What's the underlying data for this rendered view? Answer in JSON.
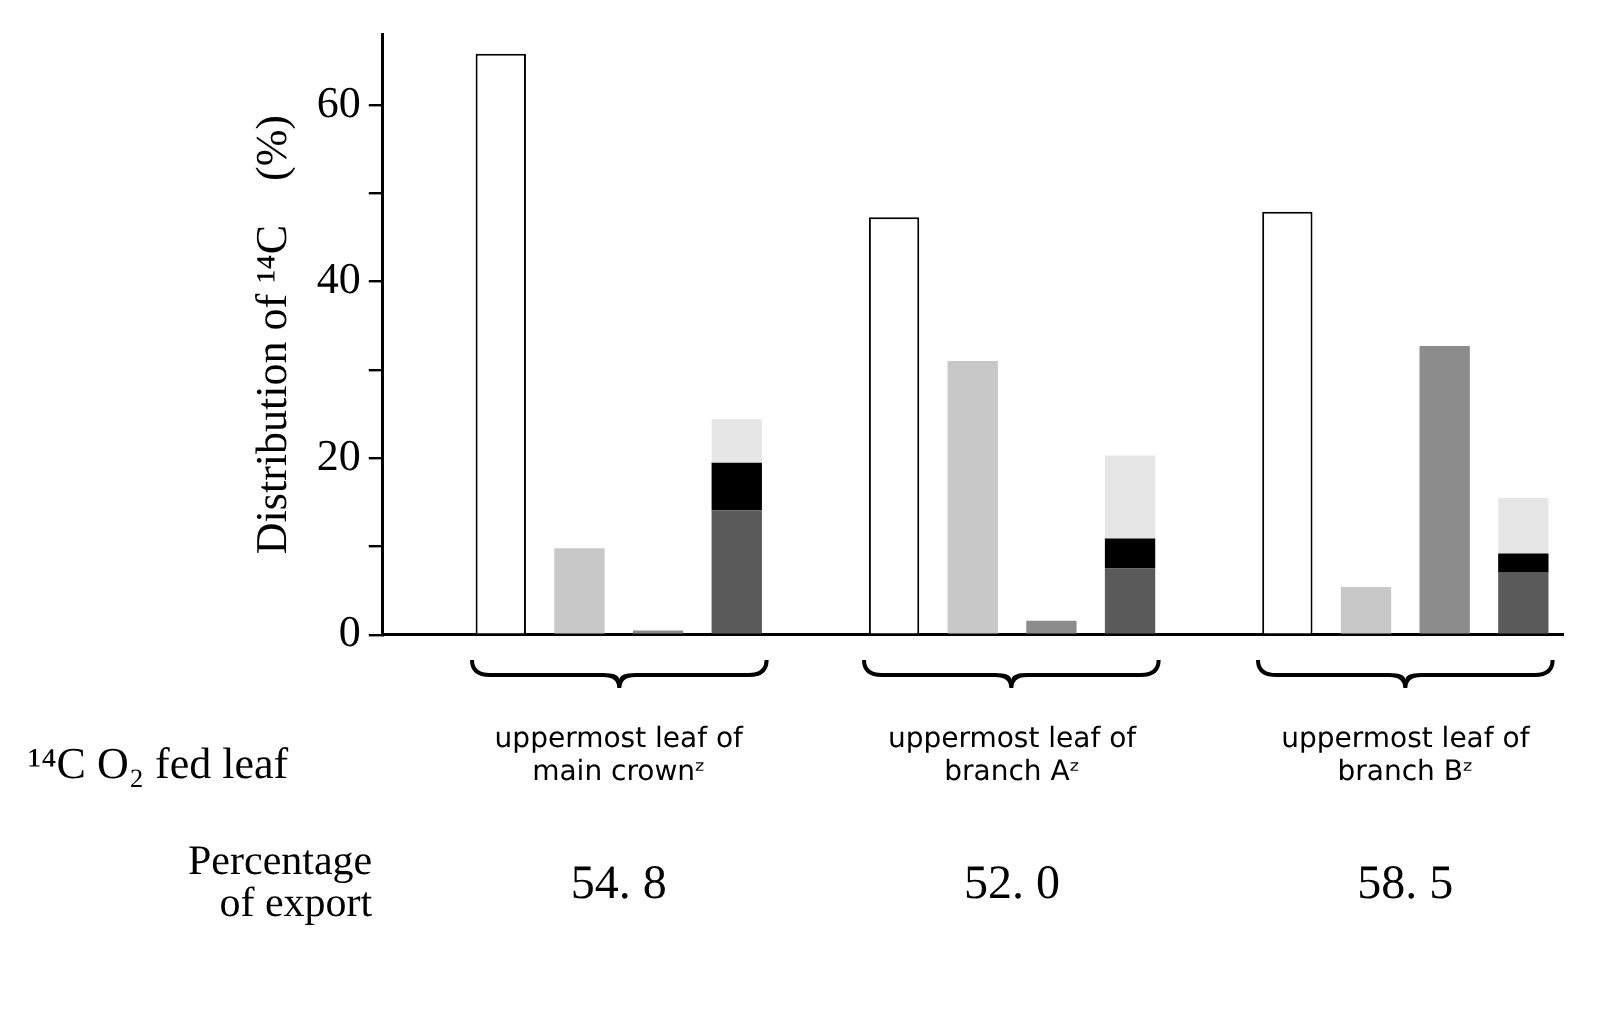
{
  "chart_data": {
    "type": "bar",
    "ylabel": "Distribution of ¹⁴C    (%)",
    "categories": [
      null,
      null,
      "uppermost leaf of\nmain crownᶻ",
      null,
      null,
      null,
      null,
      "uppermost leaf of\nbranch Aᶻ",
      null,
      null,
      null,
      null,
      "uppermost leaf of\nbranch Bᶻ",
      null,
      null
    ],
    "series": [
      {
        "color": "#ffffff",
        "values": [
          null,
          65.8,
          null,
          null,
          null,
          null,
          47.3,
          null,
          null,
          null,
          null,
          47.9,
          null,
          null,
          null
        ]
      },
      {
        "color": "#c8c8c8",
        "values": [
          null,
          null,
          9.8,
          null,
          null,
          null,
          null,
          31.0,
          null,
          null,
          null,
          null,
          5.4,
          null,
          null
        ]
      },
      {
        "color": "#8c8c8c",
        "values": [
          null,
          null,
          null,
          0.5,
          null,
          null,
          null,
          null,
          1.6,
          null,
          null,
          null,
          null,
          32.7,
          null
        ]
      },
      {
        "color": "#5a5a5a",
        "values": [
          null,
          null,
          null,
          null,
          14.1,
          null,
          null,
          null,
          null,
          7.5,
          null,
          null,
          null,
          null,
          7.1
        ]
      },
      {
        "color": "#000000",
        "values": [
          null,
          null,
          null,
          null,
          5.4,
          null,
          null,
          null,
          null,
          3.4,
          null,
          null,
          null,
          null,
          2.1
        ]
      },
      {
        "color": "#e6e6e6",
        "values": [
          null,
          null,
          null,
          null,
          4.9,
          null,
          null,
          null,
          null,
          9.4,
          null,
          null,
          null,
          null,
          6.3
        ]
      }
    ],
    "stacked": true,
    "ylim": [
      0,
      68
    ],
    "yticks": [
      0,
      {
        "value": 10,
        "label": null
      },
      20,
      {
        "value": 30,
        "label": null
      },
      40,
      {
        "value": 50,
        "label": null
      },
      60
    ],
    "annotations": [
      "¹⁴C O₂  fed leaf",
      "Percentage\nof export",
      "54. 8",
      "52. 0",
      "58. 5"
    ]
  }
}
